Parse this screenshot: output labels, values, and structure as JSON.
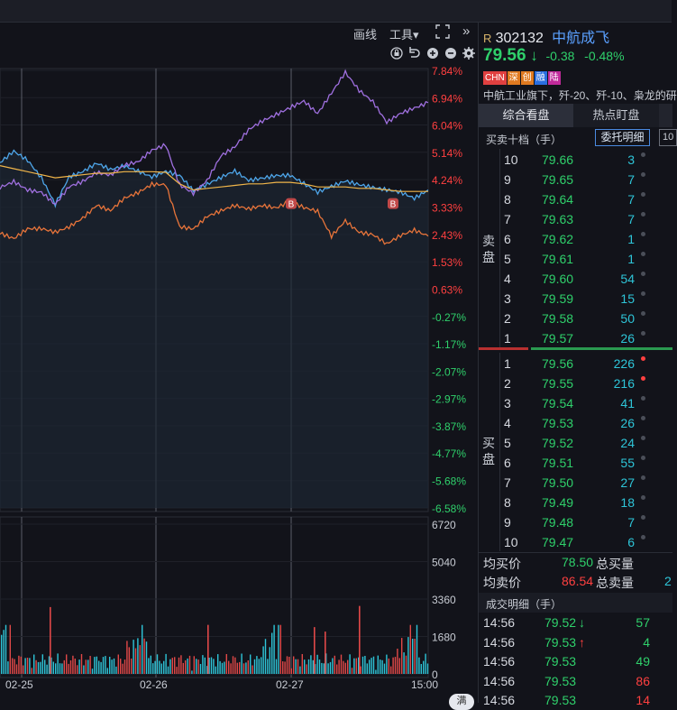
{
  "toolbar": {
    "draw_label": "画线",
    "tools_label": "工具",
    "tools_arrow": "▾",
    "expand_icon": "expand-icon",
    "collapse_icon": "double-chevron-right-icon"
  },
  "chart_icons": [
    "lock-icon",
    "undo-icon",
    "zoom-in-icon",
    "zoom-out-icon",
    "settings-icon"
  ],
  "colors": {
    "price_up": "#ff4040",
    "price_down": "#2fd06b",
    "stock_line": "#4ea6ea",
    "index_line": "#a070e0",
    "other_line": "#e8743a",
    "avg_line": "#f0b54a",
    "grid": "#2a2d36"
  },
  "chart_data": {
    "type": "line",
    "x_labels": [
      "02-25",
      "02-26",
      "02-27",
      "15:00"
    ],
    "pct_axis": [
      "7.84%",
      "6.94%",
      "6.04%",
      "5.14%",
      "4.24%",
      "3.33%",
      "2.43%",
      "1.53%",
      "0.63%",
      "-0.27%",
      "-1.17%",
      "-2.07%",
      "-2.97%",
      "-3.87%",
      "-4.77%",
      "-5.68%",
      "-6.58%"
    ],
    "volume_axis": [
      "6720",
      "5040",
      "3360",
      "1680",
      "0"
    ],
    "ylim": [
      -6.58,
      7.84
    ],
    "markers": [
      "B",
      "B"
    ],
    "series": [
      {
        "values": [
          4.8,
          5.2,
          4.9,
          4.3,
          3.4,
          4.3,
          4.5,
          4.8,
          4.6,
          4.7,
          4.5,
          4.3,
          4.5,
          4.4,
          3.9,
          4.1,
          4.3,
          4.5,
          4.2,
          4.3,
          4.4,
          4.4,
          4.1,
          3.8,
          4.0,
          4.2,
          4.1,
          4.0,
          3.9,
          3.8,
          3.6,
          3.9
        ]
      },
      {
        "values": [
          4.0,
          4.2,
          3.9,
          3.8,
          3.4,
          4.0,
          4.2,
          4.5,
          4.4,
          4.7,
          4.8,
          5.2,
          5.4,
          4.1,
          3.8,
          4.2,
          5.0,
          5.3,
          5.9,
          6.2,
          6.4,
          6.6,
          6.8,
          6.4,
          7.1,
          7.8,
          7.2,
          6.8,
          6.1,
          6.4,
          6.6,
          6.8
        ]
      },
      {
        "values": [
          2.5,
          2.3,
          2.6,
          2.6,
          2.5,
          2.7,
          3.0,
          3.4,
          3.2,
          3.6,
          3.8,
          4.1,
          4.1,
          2.7,
          2.6,
          3.0,
          3.2,
          3.4,
          3.3,
          3.4,
          3.3,
          3.5,
          3.3,
          3.2,
          2.4,
          2.9,
          2.5,
          2.4,
          2.1,
          2.4,
          2.6,
          2.4
        ]
      },
      {
        "values": [
          4.7,
          4.6,
          4.5,
          4.4,
          4.3,
          4.35,
          4.4,
          4.45,
          4.45,
          4.5,
          4.5,
          4.5,
          4.48,
          4.1,
          3.9,
          3.95,
          4.0,
          4.05,
          4.1,
          4.1,
          4.15,
          4.15,
          4.1,
          4.0,
          4.0,
          4.0,
          3.95,
          3.95,
          3.9,
          3.85,
          3.85,
          3.85
        ]
      }
    ]
  },
  "stock": {
    "prefix": "R",
    "code": "302132",
    "name": "中航成飞",
    "price": "79.56",
    "price_arrow": "↓",
    "change": "-0.38",
    "change_pct": "-0.48%",
    "badges": [
      "CHN",
      "深",
      "创",
      "融",
      "陆"
    ],
    "badge_colors": [
      "#e04040",
      "#e07a20",
      "#e07a20",
      "#2a6ee0",
      "#c02a9a"
    ],
    "description": "中航工业旗下，歼-20、歼-10、枭龙的研"
  },
  "tabs": [
    "综合看盘",
    "热点盯盘"
  ],
  "orderbook": {
    "title": "买卖十档（手）",
    "detail_button": "委托明细",
    "side_button": "10",
    "sell_label": "卖盘",
    "buy_label": "买盘",
    "sell": [
      {
        "level": "10",
        "price": "79.66",
        "volume": "3"
      },
      {
        "level": "9",
        "price": "79.65",
        "volume": "7"
      },
      {
        "level": "8",
        "price": "79.64",
        "volume": "7"
      },
      {
        "level": "7",
        "price": "79.63",
        "volume": "7"
      },
      {
        "level": "6",
        "price": "79.62",
        "volume": "1"
      },
      {
        "level": "5",
        "price": "79.61",
        "volume": "1"
      },
      {
        "level": "4",
        "price": "79.60",
        "volume": "54"
      },
      {
        "level": "3",
        "price": "79.59",
        "volume": "15"
      },
      {
        "level": "2",
        "price": "79.58",
        "volume": "50"
      },
      {
        "level": "1",
        "price": "79.57",
        "volume": "26"
      }
    ],
    "buy": [
      {
        "level": "1",
        "price": "79.56",
        "volume": "226",
        "hot": true
      },
      {
        "level": "2",
        "price": "79.55",
        "volume": "216",
        "hot": true
      },
      {
        "level": "3",
        "price": "79.54",
        "volume": "41",
        "hot": false
      },
      {
        "level": "4",
        "price": "79.53",
        "volume": "26",
        "hot": false
      },
      {
        "level": "5",
        "price": "79.52",
        "volume": "24",
        "hot": false
      },
      {
        "level": "6",
        "price": "79.51",
        "volume": "55",
        "hot": false
      },
      {
        "level": "7",
        "price": "79.50",
        "volume": "27",
        "hot": false
      },
      {
        "level": "8",
        "price": "79.49",
        "volume": "18",
        "hot": false
      },
      {
        "level": "9",
        "price": "79.48",
        "volume": "7",
        "hot": false
      },
      {
        "level": "10",
        "price": "79.47",
        "volume": "6",
        "hot": false
      }
    ],
    "avg_buy_label": "均买价",
    "avg_buy": "78.50",
    "total_buy_label": "总买量",
    "avg_sell_label": "均卖价",
    "avg_sell": "86.54",
    "total_sell_label": "总卖量",
    "total_sell_partial": "2"
  },
  "trades": {
    "title": "成交明细（手）",
    "rows": [
      {
        "time": "14:56",
        "price": "79.52",
        "arrow": "↓",
        "arrow_color": "#2fd06b",
        "volume": "57",
        "vol_color": "#2fd06b"
      },
      {
        "time": "14:56",
        "price": "79.53",
        "arrow": "↑",
        "arrow_color": "#ff4040",
        "volume": "4",
        "vol_color": "#2fd06b"
      },
      {
        "time": "14:56",
        "price": "79.53",
        "arrow": "",
        "arrow_color": "#2fd06b",
        "volume": "49",
        "vol_color": "#2fd06b"
      },
      {
        "time": "14:56",
        "price": "79.53",
        "arrow": "",
        "arrow_color": "#2fd06b",
        "volume": "86",
        "vol_color": "#ff4040"
      },
      {
        "time": "14:56",
        "price": "79.53",
        "arrow": "",
        "arrow_color": "#2fd06b",
        "volume": "14",
        "vol_color": "#ff4040"
      }
    ]
  },
  "overlay_label": "满"
}
